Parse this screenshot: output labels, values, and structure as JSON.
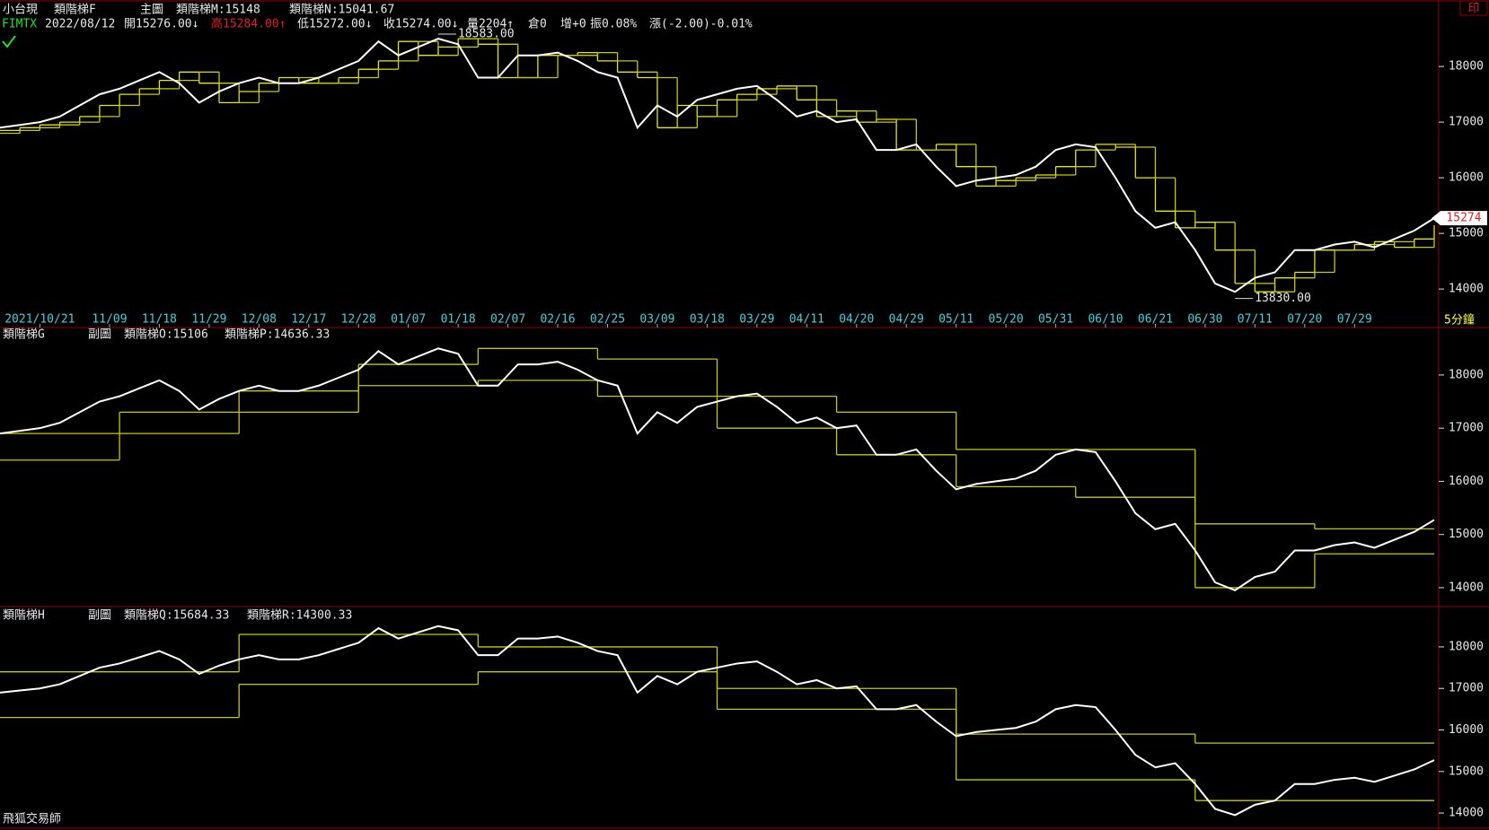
{
  "footer": "飛狐交易師",
  "timeframe": "5分鐘",
  "print_button": "印",
  "chart_data": [
    {
      "type": "line",
      "title": "小台現",
      "subtitle": "類階梯F",
      "tag": "主圖",
      "symbol": "FIMTX",
      "date": "2022/08/12",
      "quote": [
        "開15276.00↓",
        "高15284.00↑",
        "低15272.00↓",
        "收15274.00↓",
        "量2204↑",
        "倉0",
        "增+0",
        "振0.08%",
        "漲(-2.00)-0.01%"
      ],
      "x": [
        0,
        2,
        4,
        6,
        8,
        10,
        12,
        14,
        16,
        18,
        20,
        22,
        24,
        26,
        28,
        30,
        32,
        34,
        36,
        38,
        40,
        42,
        44,
        46,
        48,
        50,
        52,
        54,
        56,
        58,
        60,
        62,
        64,
        66,
        68,
        70,
        72,
        74,
        76,
        78,
        80,
        82,
        84,
        86,
        88,
        90,
        92,
        94,
        96,
        98,
        100,
        102,
        104,
        106,
        108,
        110,
        112,
        114,
        116,
        118,
        120,
        122,
        124,
        126,
        128,
        130,
        132,
        134,
        136,
        138,
        140,
        142,
        144
      ],
      "xlim": [
        0,
        144
      ],
      "xticks": [
        {
          "value": 4,
          "label": "2021/10/21"
        },
        {
          "value": 11,
          "label": "11/09"
        },
        {
          "value": 16,
          "label": "11/18"
        },
        {
          "value": 21,
          "label": "11/29"
        },
        {
          "value": 26,
          "label": "12/08"
        },
        {
          "value": 31,
          "label": "12/17"
        },
        {
          "value": 36,
          "label": "12/28"
        },
        {
          "value": 41,
          "label": "01/07"
        },
        {
          "value": 46,
          "label": "01/18"
        },
        {
          "value": 51,
          "label": "02/07"
        },
        {
          "value": 56,
          "label": "02/16"
        },
        {
          "value": 61,
          "label": "02/25"
        },
        {
          "value": 66,
          "label": "03/09"
        },
        {
          "value": 71,
          "label": "03/18"
        },
        {
          "value": 76,
          "label": "03/29"
        },
        {
          "value": 81,
          "label": "04/11"
        },
        {
          "value": 86,
          "label": "04/20"
        },
        {
          "value": 91,
          "label": "04/29"
        },
        {
          "value": 96,
          "label": "05/11"
        },
        {
          "value": 101,
          "label": "05/20"
        },
        {
          "value": 106,
          "label": "05/31"
        },
        {
          "value": 111,
          "label": "06/10"
        },
        {
          "value": 116,
          "label": "06/21"
        },
        {
          "value": 121,
          "label": "06/30"
        },
        {
          "value": 126,
          "label": "07/11"
        },
        {
          "value": 131,
          "label": "07/20"
        },
        {
          "value": 136,
          "label": "07/29"
        }
      ],
      "ylim": [
        13550,
        18550
      ],
      "yticks": [
        14000,
        15000,
        16000,
        17000,
        18000
      ],
      "last_price": 15274,
      "annotations": [
        {
          "x": 44,
          "value": 18583,
          "label": "18583.00"
        },
        {
          "x": 124,
          "value": 13830,
          "label": "13830.00"
        }
      ],
      "series": [
        {
          "color": "#ffffff",
          "values": [
            16900,
            16950,
            17000,
            17100,
            17300,
            17500,
            17600,
            17750,
            17900,
            17700,
            17350,
            17550,
            17700,
            17800,
            17700,
            17700,
            17800,
            17950,
            18100,
            18450,
            18200,
            18350,
            18500,
            18400,
            17800,
            17800,
            18200,
            18200,
            18250,
            18100,
            17900,
            17800,
            16900,
            17300,
            17100,
            17400,
            17500,
            17600,
            17650,
            17400,
            17100,
            17200,
            17000,
            17050,
            16500,
            16500,
            16600,
            16200,
            15850,
            15950,
            16000,
            16050,
            16200,
            16500,
            16600,
            16550,
            16000,
            15400,
            15100,
            15200,
            14700,
            14100,
            13950,
            14200,
            14300,
            14700,
            14700,
            14800,
            14850,
            14750,
            14900,
            15050,
            15274
          ]
        },
        {
          "name": "類階梯M:15148",
          "color": "#e8e800",
          "step": true,
          "values": [
            16850,
            16900,
            16950,
            17000,
            17100,
            17300,
            17500,
            17600,
            17750,
            17900,
            17700,
            17350,
            17550,
            17700,
            17800,
            17700,
            17700,
            17800,
            17950,
            18100,
            18450,
            18200,
            18350,
            18500,
            18400,
            17800,
            17800,
            18200,
            18200,
            18250,
            18100,
            17900,
            17800,
            16900,
            17300,
            17100,
            17400,
            17500,
            17600,
            17650,
            17400,
            17100,
            17200,
            17000,
            17050,
            16500,
            16500,
            16600,
            16200,
            15850,
            15950,
            16000,
            16050,
            16200,
            16500,
            16600,
            16550,
            16000,
            15400,
            15100,
            15200,
            14700,
            14100,
            13950,
            14200,
            14300,
            14700,
            14700,
            14800,
            14850,
            14750,
            14900,
            15148
          ]
        },
        {
          "name": "類階梯N:15041.67",
          "color": "#c8c800",
          "step": true,
          "values": [
            16800,
            16850,
            16900,
            16950,
            17000,
            17100,
            17300,
            17500,
            17600,
            17750,
            17900,
            17700,
            17350,
            17550,
            17700,
            17800,
            17700,
            17700,
            17800,
            17950,
            18100,
            18450,
            18200,
            18350,
            18500,
            18400,
            17800,
            17800,
            18200,
            18200,
            18250,
            18100,
            17900,
            17800,
            16900,
            17300,
            17100,
            17400,
            17500,
            17600,
            17650,
            17400,
            17100,
            17200,
            17000,
            17050,
            16500,
            16500,
            16600,
            16200,
            15850,
            15950,
            16000,
            16050,
            16200,
            16500,
            16600,
            16550,
            16000,
            15400,
            15100,
            15200,
            14700,
            14100,
            13950,
            14200,
            14300,
            14700,
            14700,
            14800,
            14850,
            14750,
            15041.67
          ]
        }
      ]
    },
    {
      "type": "line",
      "title": "類階梯G",
      "tag": "副圖",
      "x": [
        0,
        2,
        4,
        6,
        8,
        10,
        12,
        14,
        16,
        18,
        20,
        22,
        24,
        26,
        28,
        30,
        32,
        34,
        36,
        38,
        40,
        42,
        44,
        46,
        48,
        50,
        52,
        54,
        56,
        58,
        60,
        62,
        64,
        66,
        68,
        70,
        72,
        74,
        76,
        78,
        80,
        82,
        84,
        86,
        88,
        90,
        92,
        94,
        96,
        98,
        100,
        102,
        104,
        106,
        108,
        110,
        112,
        114,
        116,
        118,
        120,
        122,
        124,
        126,
        128,
        130,
        132,
        134,
        136,
        138,
        140,
        142,
        144
      ],
      "xlim": [
        0,
        144
      ],
      "ylim": [
        13830,
        18640
      ],
      "yticks": [
        14000,
        15000,
        16000,
        17000,
        18000
      ],
      "series": [
        {
          "color": "#ffffff",
          "values": [
            16900,
            16950,
            17000,
            17100,
            17300,
            17500,
            17600,
            17750,
            17900,
            17700,
            17350,
            17550,
            17700,
            17800,
            17700,
            17700,
            17800,
            17950,
            18100,
            18450,
            18200,
            18350,
            18500,
            18400,
            17800,
            17800,
            18200,
            18200,
            18250,
            18100,
            17900,
            17800,
            16900,
            17300,
            17100,
            17400,
            17500,
            17600,
            17650,
            17400,
            17100,
            17200,
            17000,
            17050,
            16500,
            16500,
            16600,
            16200,
            15850,
            15950,
            16000,
            16050,
            16200,
            16500,
            16600,
            16550,
            16000,
            15400,
            15100,
            15200,
            14700,
            14100,
            13950,
            14200,
            14300,
            14700,
            14700,
            14800,
            14850,
            14750,
            14900,
            15050,
            15274
          ]
        },
        {
          "name": "類階梯O:15106",
          "color": "#c8c800",
          "step": true,
          "x": [
            0,
            12,
            24,
            36,
            48,
            60,
            72,
            84,
            96,
            108,
            120,
            132
          ],
          "values": [
            16900,
            17300,
            17700,
            18200,
            18500,
            18300,
            17600,
            17300,
            16600,
            16600,
            15200,
            15106
          ]
        },
        {
          "name": "類階梯P:14636.33",
          "color": "#c8c800",
          "step": true,
          "x": [
            0,
            12,
            24,
            36,
            48,
            60,
            72,
            84,
            96,
            108,
            120,
            132
          ],
          "values": [
            16400,
            16900,
            17300,
            17800,
            17900,
            17600,
            17000,
            16500,
            15900,
            15700,
            14000,
            14636.33
          ]
        }
      ]
    },
    {
      "type": "line",
      "title": "類階梯H",
      "tag": "副圖",
      "x": [
        0,
        2,
        4,
        6,
        8,
        10,
        12,
        14,
        16,
        18,
        20,
        22,
        24,
        26,
        28,
        30,
        32,
        34,
        36,
        38,
        40,
        42,
        44,
        46,
        48,
        50,
        52,
        54,
        56,
        58,
        60,
        62,
        64,
        66,
        68,
        70,
        72,
        74,
        76,
        78,
        80,
        82,
        84,
        86,
        88,
        90,
        92,
        94,
        96,
        98,
        100,
        102,
        104,
        106,
        108,
        110,
        112,
        114,
        116,
        118,
        120,
        122,
        124,
        126,
        128,
        130,
        132,
        134,
        136,
        138,
        140,
        142,
        144
      ],
      "xlim": [
        0,
        144
      ],
      "ylim": [
        13700,
        18560
      ],
      "yticks": [
        14000,
        15000,
        16000,
        17000,
        18000
      ],
      "series": [
        {
          "color": "#ffffff",
          "values": [
            16900,
            16950,
            17000,
            17100,
            17300,
            17500,
            17600,
            17750,
            17900,
            17700,
            17350,
            17550,
            17700,
            17800,
            17700,
            17700,
            17800,
            17950,
            18100,
            18450,
            18200,
            18350,
            18500,
            18400,
            17800,
            17800,
            18200,
            18200,
            18250,
            18100,
            17900,
            17800,
            16900,
            17300,
            17100,
            17400,
            17500,
            17600,
            17650,
            17400,
            17100,
            17200,
            17000,
            17050,
            16500,
            16500,
            16600,
            16200,
            15850,
            15950,
            16000,
            16050,
            16200,
            16500,
            16600,
            16550,
            16000,
            15400,
            15100,
            15200,
            14700,
            14100,
            13950,
            14200,
            14300,
            14700,
            14700,
            14800,
            14850,
            14750,
            14900,
            15050,
            15274
          ]
        },
        {
          "name": "類階梯Q:15684.33",
          "color": "#c8c800",
          "step": true,
          "x": [
            0,
            24,
            48,
            72,
            96,
            120
          ],
          "values": [
            17400,
            18300,
            18000,
            17000,
            15900,
            15684.33
          ]
        },
        {
          "name": "類階梯R:14300.33",
          "color": "#c8c800",
          "step": true,
          "x": [
            0,
            24,
            48,
            72,
            96,
            120
          ],
          "values": [
            16300,
            17100,
            17400,
            16500,
            14800,
            14300.33
          ]
        }
      ]
    }
  ]
}
